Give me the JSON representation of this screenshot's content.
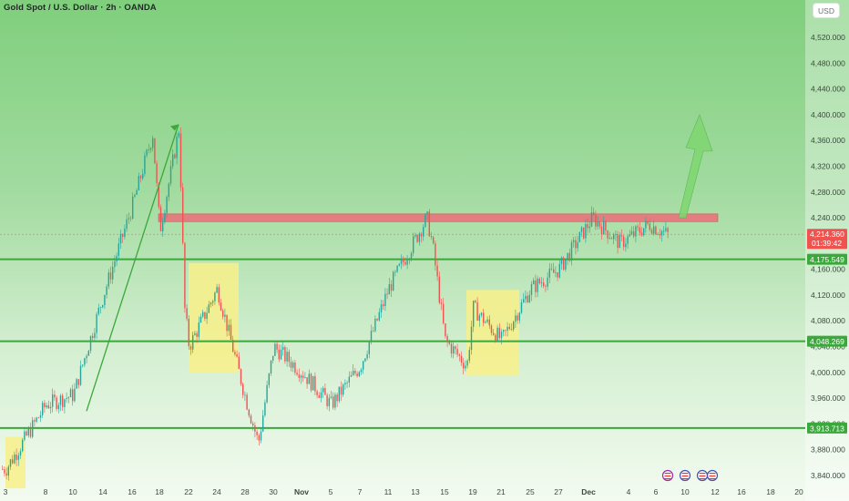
{
  "header": {
    "title": "Gold Spot / U.S. Dollar · 2h · OANDA",
    "currency": "USD"
  },
  "colors": {
    "up": "#26a69a",
    "down": "#ef5350",
    "level_line": "#3aa83b",
    "resistance_zone": "#e8737a",
    "highlight_box": "#f8f08a",
    "arrow": "#7fd66e",
    "trend_line": "#3aa83b"
  },
  "chart_data": {
    "type": "candlestick",
    "title": "Gold Spot / U.S. Dollar · 2h · OANDA",
    "ylim": [
      3820,
      4560
    ],
    "y_ticks": [
      "4,520.000",
      "4,480.000",
      "4,440.000",
      "4,400.000",
      "4,360.000",
      "4,320.000",
      "4,280.000",
      "4,240.000",
      "4,200.000",
      "4,160.000",
      "4,120.000",
      "4,080.000",
      "4,040.000",
      "4,000.000",
      "3,960.000",
      "3,920.000",
      "3,880.000",
      "3,840.000"
    ],
    "y_tick_values": [
      4520,
      4480,
      4440,
      4400,
      4360,
      4320,
      4280,
      4240,
      4200,
      4160,
      4120,
      4080,
      4040,
      4000,
      3960,
      3920,
      3880,
      3840
    ],
    "x_ticks": [
      "3",
      "8",
      "10",
      "14",
      "16",
      "18",
      "22",
      "24",
      "28",
      "30",
      "Nov",
      "5",
      "7",
      "11",
      "13",
      "15",
      "19",
      "21",
      "25",
      "27",
      "Dec",
      "4",
      "6",
      "10",
      "12",
      "16",
      "18",
      "20"
    ],
    "price_path": [
      {
        "x": "3",
        "y": 3850
      },
      {
        "x": "8",
        "y": 3950
      },
      {
        "x": "10",
        "y": 3965
      },
      {
        "x": "14",
        "y": 4120
      },
      {
        "x": "16",
        "y": 4260
      },
      {
        "x": "17",
        "y": 4370
      },
      {
        "x": "18",
        "y": 4220
      },
      {
        "x": "19",
        "y": 4380
      },
      {
        "x": "21",
        "y": 4100
      },
      {
        "x": "22",
        "y": 4040
      },
      {
        "x": "24",
        "y": 4130
      },
      {
        "x": "28",
        "y": 3960
      },
      {
        "x": "29",
        "y": 3890
      },
      {
        "x": "30",
        "y": 4040
      },
      {
        "x": "Nov 3",
        "y": 4000
      },
      {
        "x": "Nov 5",
        "y": 3950
      },
      {
        "x": "Nov 7",
        "y": 4010
      },
      {
        "x": "Nov 11",
        "y": 4130
      },
      {
        "x": "Nov 13",
        "y": 4240
      },
      {
        "x": "Nov 14",
        "y": 4200
      },
      {
        "x": "Nov 15",
        "y": 4050
      },
      {
        "x": "Nov 18",
        "y": 4010
      },
      {
        "x": "Nov 19",
        "y": 4100
      },
      {
        "x": "Nov 21",
        "y": 4050
      },
      {
        "x": "Nov 25",
        "y": 4130
      },
      {
        "x": "Nov 27",
        "y": 4160
      },
      {
        "x": "Dec 1",
        "y": 4240
      },
      {
        "x": "Dec 3",
        "y": 4200
      },
      {
        "x": "Dec 5",
        "y": 4230
      },
      {
        "x": "Dec 7",
        "y": 4214
      }
    ],
    "horizontal_levels": [
      {
        "value": 4175.549,
        "label": "4,175.549"
      },
      {
        "value": 4048.269,
        "label": "4,048.269"
      },
      {
        "value": 3913.713,
        "label": "3,913.713"
      }
    ],
    "last_price": {
      "value": 4214.36,
      "label": "4,214.360",
      "countdown": "01:39:42"
    },
    "resistance_zone": {
      "low": 4234,
      "high": 4246
    },
    "highlight_boxes": [
      {
        "from": "3",
        "to": "7",
        "low": 3820,
        "high": 3900
      },
      {
        "from": "22",
        "to": "27",
        "low": 4000,
        "high": 4170
      },
      {
        "from": "Nov 18",
        "to": "Nov 23",
        "low": 3995,
        "high": 4128
      }
    ],
    "trend_line": {
      "from": {
        "x": "10",
        "y": 3940
      },
      "to": {
        "x": "19",
        "y": 4385
      }
    },
    "projection_arrow": {
      "from": {
        "x": "Dec 8",
        "y": 4240
      },
      "to": {
        "x": "Dec 10",
        "y": 4400
      }
    }
  }
}
